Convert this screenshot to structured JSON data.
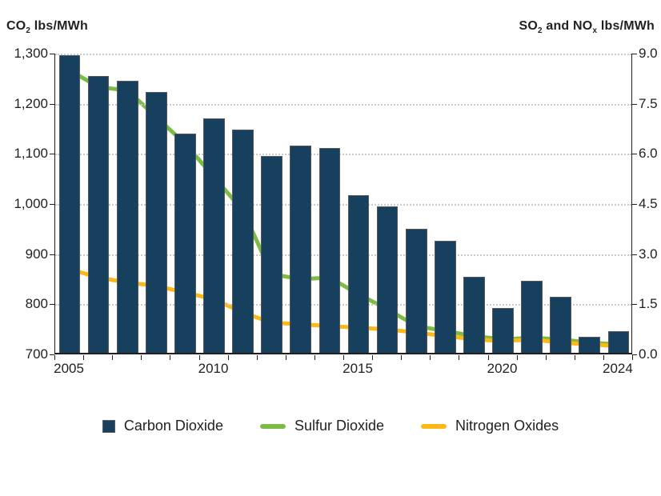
{
  "titles": {
    "left": {
      "p1": "CO",
      "sub1": "2",
      "p2": " lbs/MWh"
    },
    "right": {
      "p1": "SO",
      "sub1": "2",
      "p2": " and NO",
      "sub2": "x",
      "p3": " lbs/MWh"
    }
  },
  "left_axis": {
    "ticks": [
      "1,300",
      "1,200",
      "1,100",
      "1,000",
      "900",
      "800",
      "700"
    ],
    "min": 700,
    "max": 1300
  },
  "right_axis": {
    "ticks": [
      "9.0",
      "7.5",
      "6.0",
      "4.5",
      "3.0",
      "1.5",
      "0.0"
    ],
    "min": 0,
    "max": 9
  },
  "x_axis": {
    "labels": [
      {
        "text": "2005",
        "index": 0
      },
      {
        "text": "2010",
        "index": 5
      },
      {
        "text": "2015",
        "index": 10
      },
      {
        "text": "2020",
        "index": 15
      },
      {
        "text": "2024",
        "index": 19
      }
    ]
  },
  "legend": [
    {
      "label": "Carbon Dioxide",
      "swatch": "square",
      "color": "#16405e"
    },
    {
      "label": "Sulfur Dioxide",
      "swatch": "line",
      "color": "#7cbc45"
    },
    {
      "label": "Nitrogen Oxides",
      "swatch": "line",
      "color": "#fcb815"
    }
  ],
  "colors": {
    "bar": "#16405e",
    "so2_line": "#7cbc45",
    "nox_line": "#fcb815",
    "gridline": "#c9cbcd",
    "axis": "#231f20"
  },
  "chart_data": {
    "type": "bar",
    "subtype": "bars-with-two-lines",
    "title": "",
    "xlabel": "",
    "left_ylabel": "CO2 lbs/MWh",
    "right_ylabel": "SO2 and NOx lbs/MWh",
    "left_ylim": [
      700,
      1300
    ],
    "right_ylim": [
      0,
      9.0
    ],
    "grid": true,
    "legend_position": "bottom",
    "categories": [
      2005,
      2006,
      2007,
      2008,
      2009,
      2010,
      2011,
      2012,
      2013,
      2014,
      2015,
      2016,
      2017,
      2018,
      2019,
      2020,
      2021,
      2022,
      2023,
      2024
    ],
    "series": [
      {
        "name": "Carbon Dioxide",
        "type": "bar",
        "axis": "left",
        "unit": "lbs/MWh",
        "color": "#16405e",
        "values": [
          1293,
          1252,
          1243,
          1221,
          1138,
          1168,
          1146,
          1092,
          1113,
          1108,
          1014,
          992,
          948,
          923,
          852,
          790,
          844,
          812,
          732,
          743
        ]
      },
      {
        "name": "Sulfur Dioxide",
        "type": "line",
        "axis": "right",
        "unit": "lbs/MWh",
        "color": "#7cbc45",
        "values": [
          8.5,
          8.0,
          7.9,
          7.1,
          6.3,
          5.3,
          4.3,
          2.4,
          2.25,
          2.3,
          1.8,
          1.35,
          0.85,
          0.7,
          0.55,
          0.45,
          0.5,
          0.45,
          0.35,
          0.3
        ]
      },
      {
        "name": "Nitrogen Oxides",
        "type": "line",
        "axis": "right",
        "unit": "lbs/MWh",
        "color": "#fcb815",
        "values": [
          2.55,
          2.3,
          2.15,
          2.05,
          1.85,
          1.65,
          1.25,
          0.95,
          0.9,
          0.85,
          0.8,
          0.75,
          0.65,
          0.55,
          0.45,
          0.4,
          0.45,
          0.35,
          0.3,
          0.25
        ]
      }
    ]
  }
}
